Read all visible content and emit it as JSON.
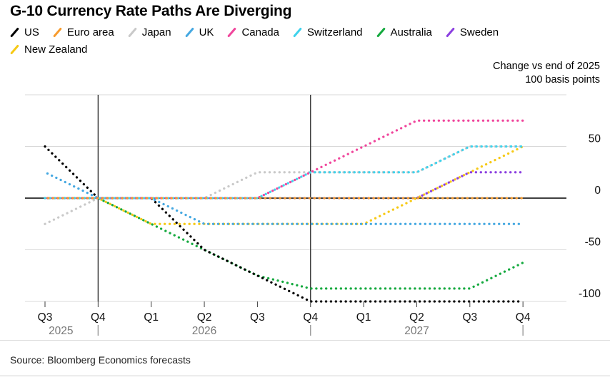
{
  "title": "G-10 Currency Rate Paths Are Diverging",
  "annotation": {
    "line1": "Change vs end of 2025",
    "line2": "100 basis points"
  },
  "source": "Source: Bloomberg Economics forecasts",
  "legend": [
    {
      "label": "US",
      "color": "#000000"
    },
    {
      "label": "Euro area",
      "color": "#F79B2E"
    },
    {
      "label": "Japan",
      "color": "#C9C9C9"
    },
    {
      "label": "UK",
      "color": "#45A8E1"
    },
    {
      "label": "Canada",
      "color": "#F0469C"
    },
    {
      "label": "Switzerland",
      "color": "#3FD2EC"
    },
    {
      "label": "Australia",
      "color": "#14A93E"
    },
    {
      "label": "Sweden",
      "color": "#8B3FE0"
    },
    {
      "label": "New Zealand",
      "color": "#F6C915"
    }
  ],
  "chart_data": {
    "type": "line",
    "style": "dotted",
    "title": "G-10 Currency Rate Paths Are Diverging",
    "ylabel": "Change vs end of 2025, 100 basis points",
    "x_categories": [
      "Q3 2025",
      "Q4 2025",
      "Q1 2026",
      "Q2 2026",
      "Q3 2026",
      "Q4 2026",
      "Q1 2027",
      "Q2 2027",
      "Q3 2027",
      "Q4 2027"
    ],
    "x_tick_labels": [
      "Q3",
      "Q4",
      "Q1",
      "Q2",
      "Q3",
      "Q4",
      "Q1",
      "Q2",
      "Q3",
      "Q4"
    ],
    "year_labels": [
      {
        "label": "2025",
        "index": 0.3
      },
      {
        "label": "2026",
        "index": 3
      },
      {
        "label": "2027",
        "index": 7
      }
    ],
    "year_divider_indices": [
      1,
      5
    ],
    "year_bar_indices": [
      1,
      5,
      9
    ],
    "ylim": [
      -100,
      100
    ],
    "ytick_labels": [
      {
        "value": 50,
        "label": "50"
      },
      {
        "value": 0,
        "label": "0"
      },
      {
        "value": -50,
        "label": "-50"
      },
      {
        "value": -100,
        "label": "-100"
      }
    ],
    "gridline_values": [
      100,
      50,
      -50,
      -100
    ],
    "zero_line": true,
    "legend_position": "top",
    "series": [
      {
        "name": "US",
        "color": "#000000",
        "values": [
          50,
          0,
          0,
          -50,
          -75,
          -100,
          -100,
          -100,
          -100,
          -100
        ]
      },
      {
        "name": "Euro area",
        "color": "#F79B2E",
        "values": [
          0,
          0,
          0,
          0,
          0,
          0,
          0,
          0,
          0,
          0
        ]
      },
      {
        "name": "Japan",
        "color": "#C9C9C9",
        "values": [
          -25,
          0,
          0,
          0,
          25,
          25,
          25,
          25,
          50,
          50
        ]
      },
      {
        "name": "UK",
        "color": "#45A8E1",
        "values": [
          25,
          0,
          0,
          -25,
          -25,
          -25,
          -25,
          -25,
          -25,
          -25
        ]
      },
      {
        "name": "Canada",
        "color": "#F0469C",
        "values": [
          0,
          0,
          0,
          0,
          0,
          25,
          50,
          75,
          75,
          75
        ]
      },
      {
        "name": "Switzerland",
        "color": "#3FD2EC",
        "values": [
          0,
          0,
          0,
          0,
          0,
          25,
          25,
          25,
          50,
          50
        ]
      },
      {
        "name": "Australia",
        "color": "#14A93E",
        "values": [
          0,
          0,
          -25,
          -50,
          -75,
          -87.5,
          -87.5,
          -87.5,
          -87.5,
          -62.5
        ]
      },
      {
        "name": "Sweden",
        "color": "#8B3FE0",
        "values": [
          0,
          0,
          0,
          0,
          0,
          0,
          0,
          0,
          25,
          25
        ]
      },
      {
        "name": "New Zealand",
        "color": "#F6C915",
        "values": [
          0,
          0,
          -25,
          -25,
          -25,
          -25,
          -25,
          0,
          25,
          50
        ]
      }
    ],
    "draw_order": [
      "Australia",
      "US",
      "New Zealand",
      "UK",
      "Japan",
      "Switzerland",
      "Canada",
      "Sweden",
      "Euro area"
    ]
  }
}
